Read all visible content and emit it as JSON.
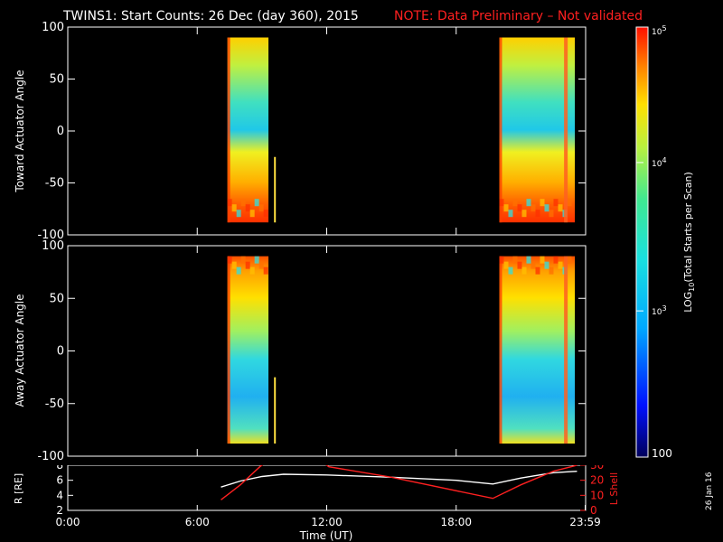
{
  "header": {
    "title": "TWINS1: Start Counts: 26 Dec (day 360), 2015",
    "note": "NOTE: Data Preliminary – Not validated",
    "title_color": "#ffffff",
    "note_color": "#ff2020"
  },
  "side_date": "26 Jan 16",
  "chart_data": [
    {
      "type": "heatmap",
      "panel": "top",
      "ylabel": "Toward Actuator Angle",
      "ylim": [
        -100,
        100
      ],
      "yticks": [
        "100",
        "50",
        "0",
        "-50",
        "-100"
      ],
      "x_range_hours": [
        0,
        24
      ],
      "blocks": [
        {
          "t_start": 7.4,
          "t_end": 9.3,
          "angle_min": -88,
          "angle_max": 90
        },
        {
          "t_start": 20.0,
          "t_end": 23.5,
          "angle_min": -88,
          "angle_max": 90
        }
      ]
    },
    {
      "type": "heatmap",
      "panel": "bottom",
      "ylabel": "Away Actuator Angle",
      "ylim": [
        -100,
        100
      ],
      "yticks": [
        "100",
        "50",
        "0",
        "-50",
        "-100"
      ],
      "x_range_hours": [
        0,
        24
      ],
      "blocks": [
        {
          "t_start": 7.4,
          "t_end": 9.3,
          "angle_min": -88,
          "angle_max": 90
        },
        {
          "t_start": 20.0,
          "t_end": 23.5,
          "angle_min": -88,
          "angle_max": 90
        }
      ]
    },
    {
      "type": "line",
      "panel": "orbit",
      "ylabel_left": "R [RE]",
      "ylabel_right": "L Shell",
      "ylim_left": [
        2,
        8
      ],
      "ylim_right": [
        0,
        30
      ],
      "yticks_left": [
        "8",
        "6",
        "4",
        "2"
      ],
      "yticks_right": [
        "30",
        "20",
        "10",
        "0"
      ],
      "xlabel": "Time (UT)",
      "xticks": [
        "0:00",
        "6:00",
        "12:00",
        "18:00",
        "23:59"
      ],
      "series": [
        {
          "name": "R",
          "color": "#ffffff",
          "axis": "left",
          "x": [
            7.1,
            8.0,
            9.0,
            10.0,
            12.0,
            15.0,
            18.0,
            19.7,
            21.0,
            22.5,
            23.6
          ],
          "y": [
            5.1,
            5.9,
            6.5,
            6.8,
            6.7,
            6.4,
            6.0,
            5.5,
            6.3,
            7.0,
            7.2
          ]
        },
        {
          "name": "L Shell",
          "color": "#ff2020",
          "axis": "right",
          "x": [
            7.1,
            8.0,
            8.9,
            9.1,
            11.9,
            12.1,
            15.0,
            19.7,
            21.0,
            22.5,
            23.6
          ],
          "y": [
            7,
            17,
            29,
            31,
            31,
            29,
            22,
            8,
            17,
            26,
            30
          ]
        }
      ]
    }
  ],
  "colorbar": {
    "label": "LOG10(Total Starts per Scan)",
    "label_main": "LOG",
    "label_sub": "10",
    "label_rest": "(Total Starts per Scan)",
    "ticks": [
      {
        "base": "10",
        "exp": "5"
      },
      {
        "base": "10",
        "exp": "4"
      },
      {
        "base": "10",
        "exp": "3"
      },
      {
        "base": "100",
        "exp": ""
      }
    ]
  }
}
